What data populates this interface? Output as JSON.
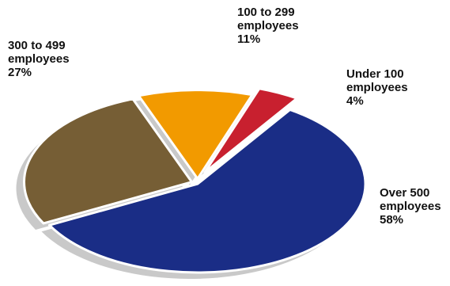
{
  "chart_data": {
    "type": "pie",
    "title": "",
    "slices": [
      {
        "name": "Under 100 employees",
        "lines": [
          "Under 100",
          "employees",
          "4%"
        ],
        "value": 4,
        "color": "#c8202f"
      },
      {
        "name": "Over 500 employees",
        "lines": [
          "Over 500",
          "employees",
          "58%"
        ],
        "value": 58,
        "color": "#1a2d86"
      },
      {
        "name": "300 to 499 employees",
        "lines": [
          "300 to 499",
          "employees",
          "27%"
        ],
        "value": 27,
        "color": "#765e35"
      },
      {
        "name": "100 to 299 employees",
        "lines": [
          "100 to 299",
          "employees",
          "11%"
        ],
        "value": 11,
        "color": "#f29a00"
      }
    ],
    "start_angle_deg": -71,
    "exploded": true,
    "shadow": true,
    "legend": "none"
  }
}
